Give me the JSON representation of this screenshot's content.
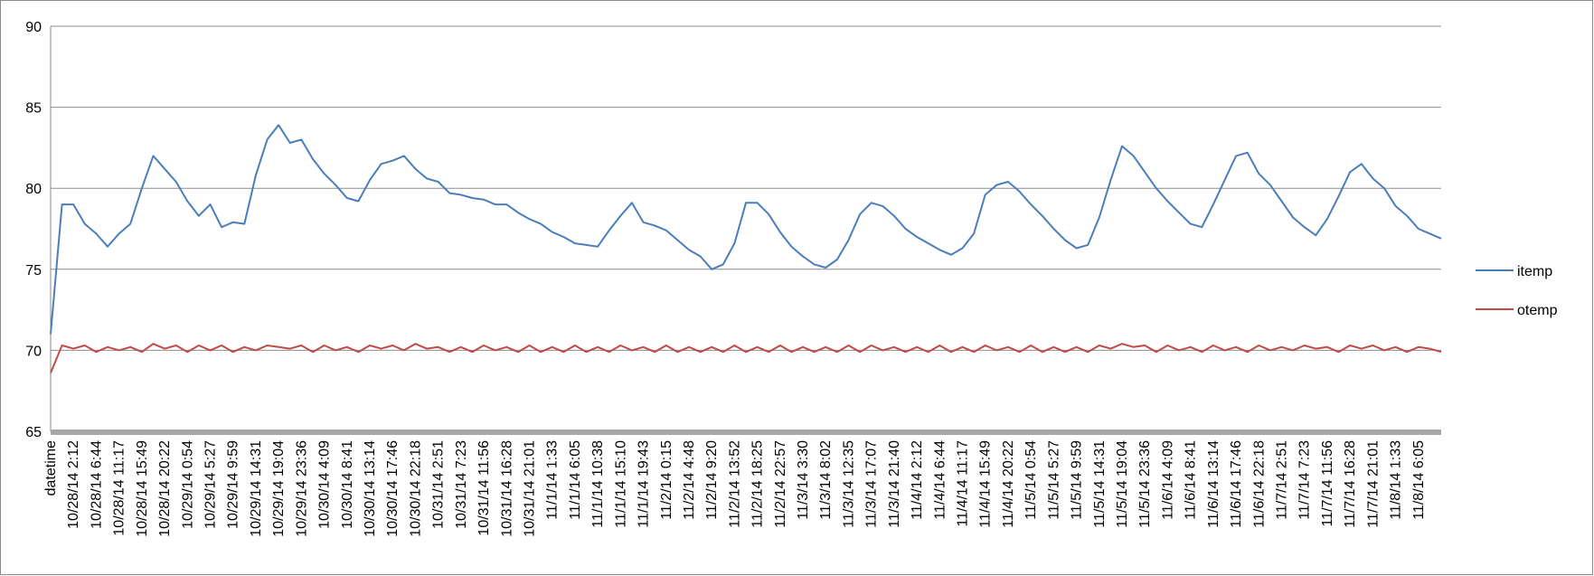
{
  "chart_data": {
    "type": "line",
    "categories": [
      "datetime",
      null,
      "10/28/14 2:12",
      null,
      "10/28/14 6:44",
      null,
      "10/28/14 11:17",
      null,
      "10/28/14 15:49",
      null,
      "10/28/14 20:22",
      null,
      "10/29/14 0:54",
      null,
      "10/29/14 5:27",
      null,
      "10/29/14 9:59",
      null,
      "10/29/14 14:31",
      null,
      "10/29/14 19:04",
      null,
      "10/29/14 23:36",
      null,
      "10/30/14 4:09",
      null,
      "10/30/14 8:41",
      null,
      "10/30/14 13:14",
      null,
      "10/30/14 17:46",
      null,
      "10/30/14 22:18",
      null,
      "10/31/14 2:51",
      null,
      "10/31/14 7:23",
      null,
      "10/31/14 11:56",
      null,
      "10/31/14 16:28",
      null,
      "10/31/14 21:01",
      null,
      "11/1/14 1:33",
      null,
      "11/1/14 6:05",
      null,
      "11/1/14 10:38",
      null,
      "11/1/14 15:10",
      null,
      "11/1/14 19:43",
      null,
      "11/2/14 0:15",
      null,
      "11/2/14 4:48",
      null,
      "11/2/14 9:20",
      null,
      "11/2/14 13:52",
      null,
      "11/2/14 18:25",
      null,
      "11/2/14 22:57",
      null,
      "11/3/14 3:30",
      null,
      "11/3/14 8:02",
      null,
      "11/3/14 12:35",
      null,
      "11/3/14 17:07",
      null,
      "11/3/14 21:40",
      null,
      "11/4/14 2:12",
      null,
      "11/4/14 6:44",
      null,
      "11/4/14 11:17",
      null,
      "11/4/14 15:49",
      null,
      "11/4/14 20:22",
      null,
      "11/5/14 0:54",
      null,
      "11/5/14 5:27",
      null,
      "11/5/14 9:59",
      null,
      "11/5/14 14:31",
      null,
      "11/5/14 19:04",
      null,
      "11/5/14 23:36",
      null,
      "11/6/14 4:09",
      null,
      "11/6/14 8:41",
      null,
      "11/6/14 13:14",
      null,
      "11/6/14 17:46",
      null,
      "11/6/14 22:18",
      null,
      "11/7/14 2:51",
      null,
      "11/7/14 7:23",
      null,
      "11/7/14 11:56",
      null,
      "11/7/14 16:28",
      null,
      "11/7/14 21:01",
      null,
      "11/8/14 1:33",
      null,
      "11/8/14 6:05",
      null,
      null
    ],
    "series": [
      {
        "name": "itemp",
        "color": "#4a7ebb",
        "values": [
          71,
          79,
          79,
          77.8,
          77.2,
          76.4,
          77.2,
          77.8,
          80,
          82,
          81.2,
          80.4,
          79.2,
          78.3,
          79,
          77.6,
          77.9,
          77.8,
          80.8,
          83,
          83.9,
          82.8,
          83,
          81.8,
          80.9,
          80.2,
          79.4,
          79.2,
          80.5,
          81.5,
          81.7,
          82,
          81.2,
          80.6,
          80.4,
          79.7,
          79.6,
          79.4,
          79.3,
          79,
          79,
          78.5,
          78.1,
          77.8,
          77.3,
          77,
          76.6,
          76.5,
          76.4,
          77.4,
          78.3,
          79.1,
          77.9,
          77.7,
          77.4,
          76.8,
          76.2,
          75.8,
          75,
          75.3,
          76.6,
          79.1,
          79.1,
          78.4,
          77.3,
          76.4,
          75.8,
          75.3,
          75.1,
          75.6,
          76.8,
          78.4,
          79.1,
          78.9,
          78.3,
          77.5,
          77,
          76.6,
          76.2,
          75.9,
          76.3,
          77.2,
          79.6,
          80.2,
          80.4,
          79.8,
          79,
          78.3,
          77.5,
          76.8,
          76.3,
          76.5,
          78.2,
          80.5,
          82.6,
          82,
          81,
          80,
          79.2,
          78.5,
          77.8,
          77.6,
          79,
          80.5,
          82,
          82.2,
          80.9,
          80.2,
          79.2,
          78.2,
          77.6,
          77.1,
          78.1,
          79.5,
          81,
          81.5,
          80.6,
          80,
          78.9,
          78.3,
          77.5,
          77.2,
          76.9
        ]
      },
      {
        "name": "otemp",
        "color": "#be4b48",
        "values": [
          68.6,
          70.3,
          70.1,
          70.3,
          69.9,
          70.2,
          70,
          70.2,
          69.9,
          70.4,
          70.1,
          70.3,
          69.9,
          70.3,
          70,
          70.3,
          69.9,
          70.2,
          70,
          70.3,
          70.2,
          70.1,
          70.3,
          69.9,
          70.3,
          70,
          70.2,
          69.9,
          70.3,
          70.1,
          70.3,
          70,
          70.4,
          70.1,
          70.2,
          69.9,
          70.2,
          69.9,
          70.3,
          70,
          70.2,
          69.9,
          70.3,
          69.9,
          70.2,
          69.9,
          70.3,
          69.9,
          70.2,
          69.9,
          70.3,
          70,
          70.2,
          69.9,
          70.3,
          69.9,
          70.2,
          69.9,
          70.2,
          69.9,
          70.3,
          69.9,
          70.2,
          69.9,
          70.3,
          69.9,
          70.2,
          69.9,
          70.2,
          69.9,
          70.3,
          69.9,
          70.3,
          70,
          70.2,
          69.9,
          70.2,
          69.9,
          70.3,
          69.9,
          70.2,
          69.9,
          70.3,
          70,
          70.2,
          69.9,
          70.3,
          69.9,
          70.2,
          69.9,
          70.2,
          69.9,
          70.3,
          70.1,
          70.4,
          70.2,
          70.3,
          69.9,
          70.3,
          70,
          70.2,
          69.9,
          70.3,
          70,
          70.2,
          69.9,
          70.3,
          70,
          70.2,
          70,
          70.3,
          70.1,
          70.2,
          69.9,
          70.3,
          70.1,
          70.3,
          70,
          70.2,
          69.9,
          70.2,
          70.1,
          69.9
        ]
      }
    ],
    "ylim": [
      65,
      90
    ],
    "yticks": [
      65,
      70,
      75,
      80,
      85,
      90
    ],
    "grid": true,
    "legend": "right"
  }
}
